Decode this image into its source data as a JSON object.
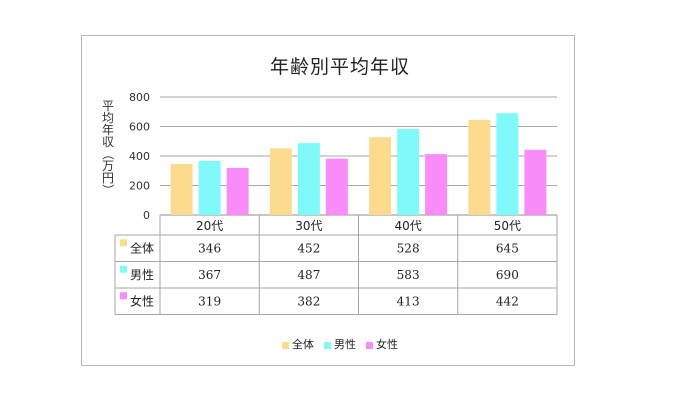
{
  "chart_data": {
    "type": "bar",
    "title": "年齢別平均年収",
    "ylabel": "平均年収（万円）",
    "xlabel": "",
    "ylim": [
      0,
      800
    ],
    "yticks": [
      0,
      200,
      400,
      600,
      800
    ],
    "categories": [
      "20代",
      "30代",
      "40代",
      "50代"
    ],
    "series": [
      {
        "name": "全体",
        "color": "#FCDB8E",
        "values": [
          346,
          452,
          528,
          645
        ]
      },
      {
        "name": "男性",
        "color": "#7FF9F9",
        "values": [
          367,
          487,
          583,
          690
        ]
      },
      {
        "name": "女性",
        "color": "#FA8CFA",
        "values": [
          319,
          382,
          413,
          442
        ]
      }
    ],
    "grid": true,
    "legend_position": "bottom",
    "data_table": true
  }
}
